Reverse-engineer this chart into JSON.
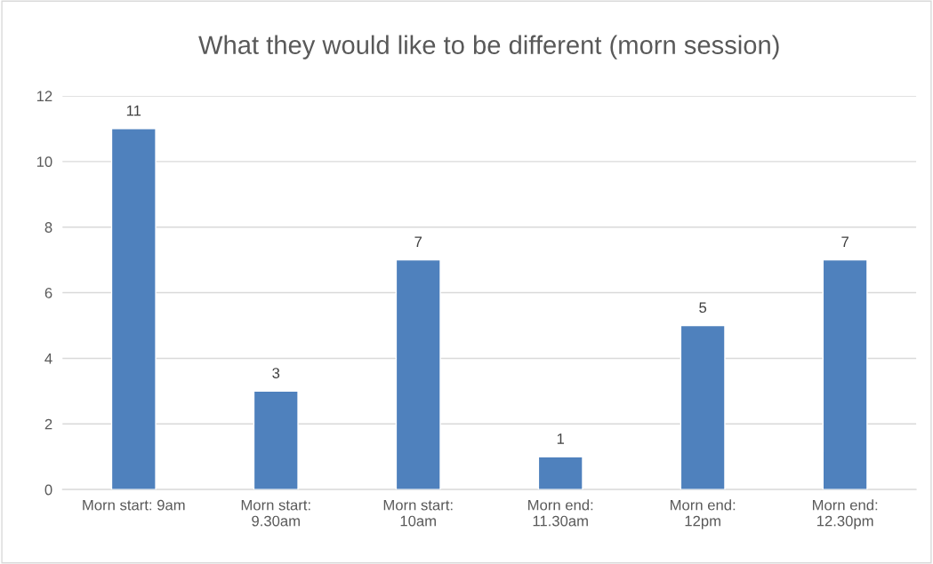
{
  "chart_data": {
    "type": "bar",
    "title": "What they would like to be different (morn session)",
    "categories": [
      "Morn start: 9am",
      "Morn start:\n9.30am",
      "Morn start:\n10am",
      "Morn end:\n11.30am",
      "Morn end:\n12pm",
      "Morn end:\n12.30pm"
    ],
    "values": [
      11,
      3,
      7,
      1,
      5,
      7
    ],
    "color": "#4f81bd",
    "ylim": [
      0,
      12
    ],
    "yticks": [
      0,
      2,
      4,
      6,
      8,
      10,
      12
    ],
    "grid": "y",
    "data_labels": true,
    "legend": false
  }
}
